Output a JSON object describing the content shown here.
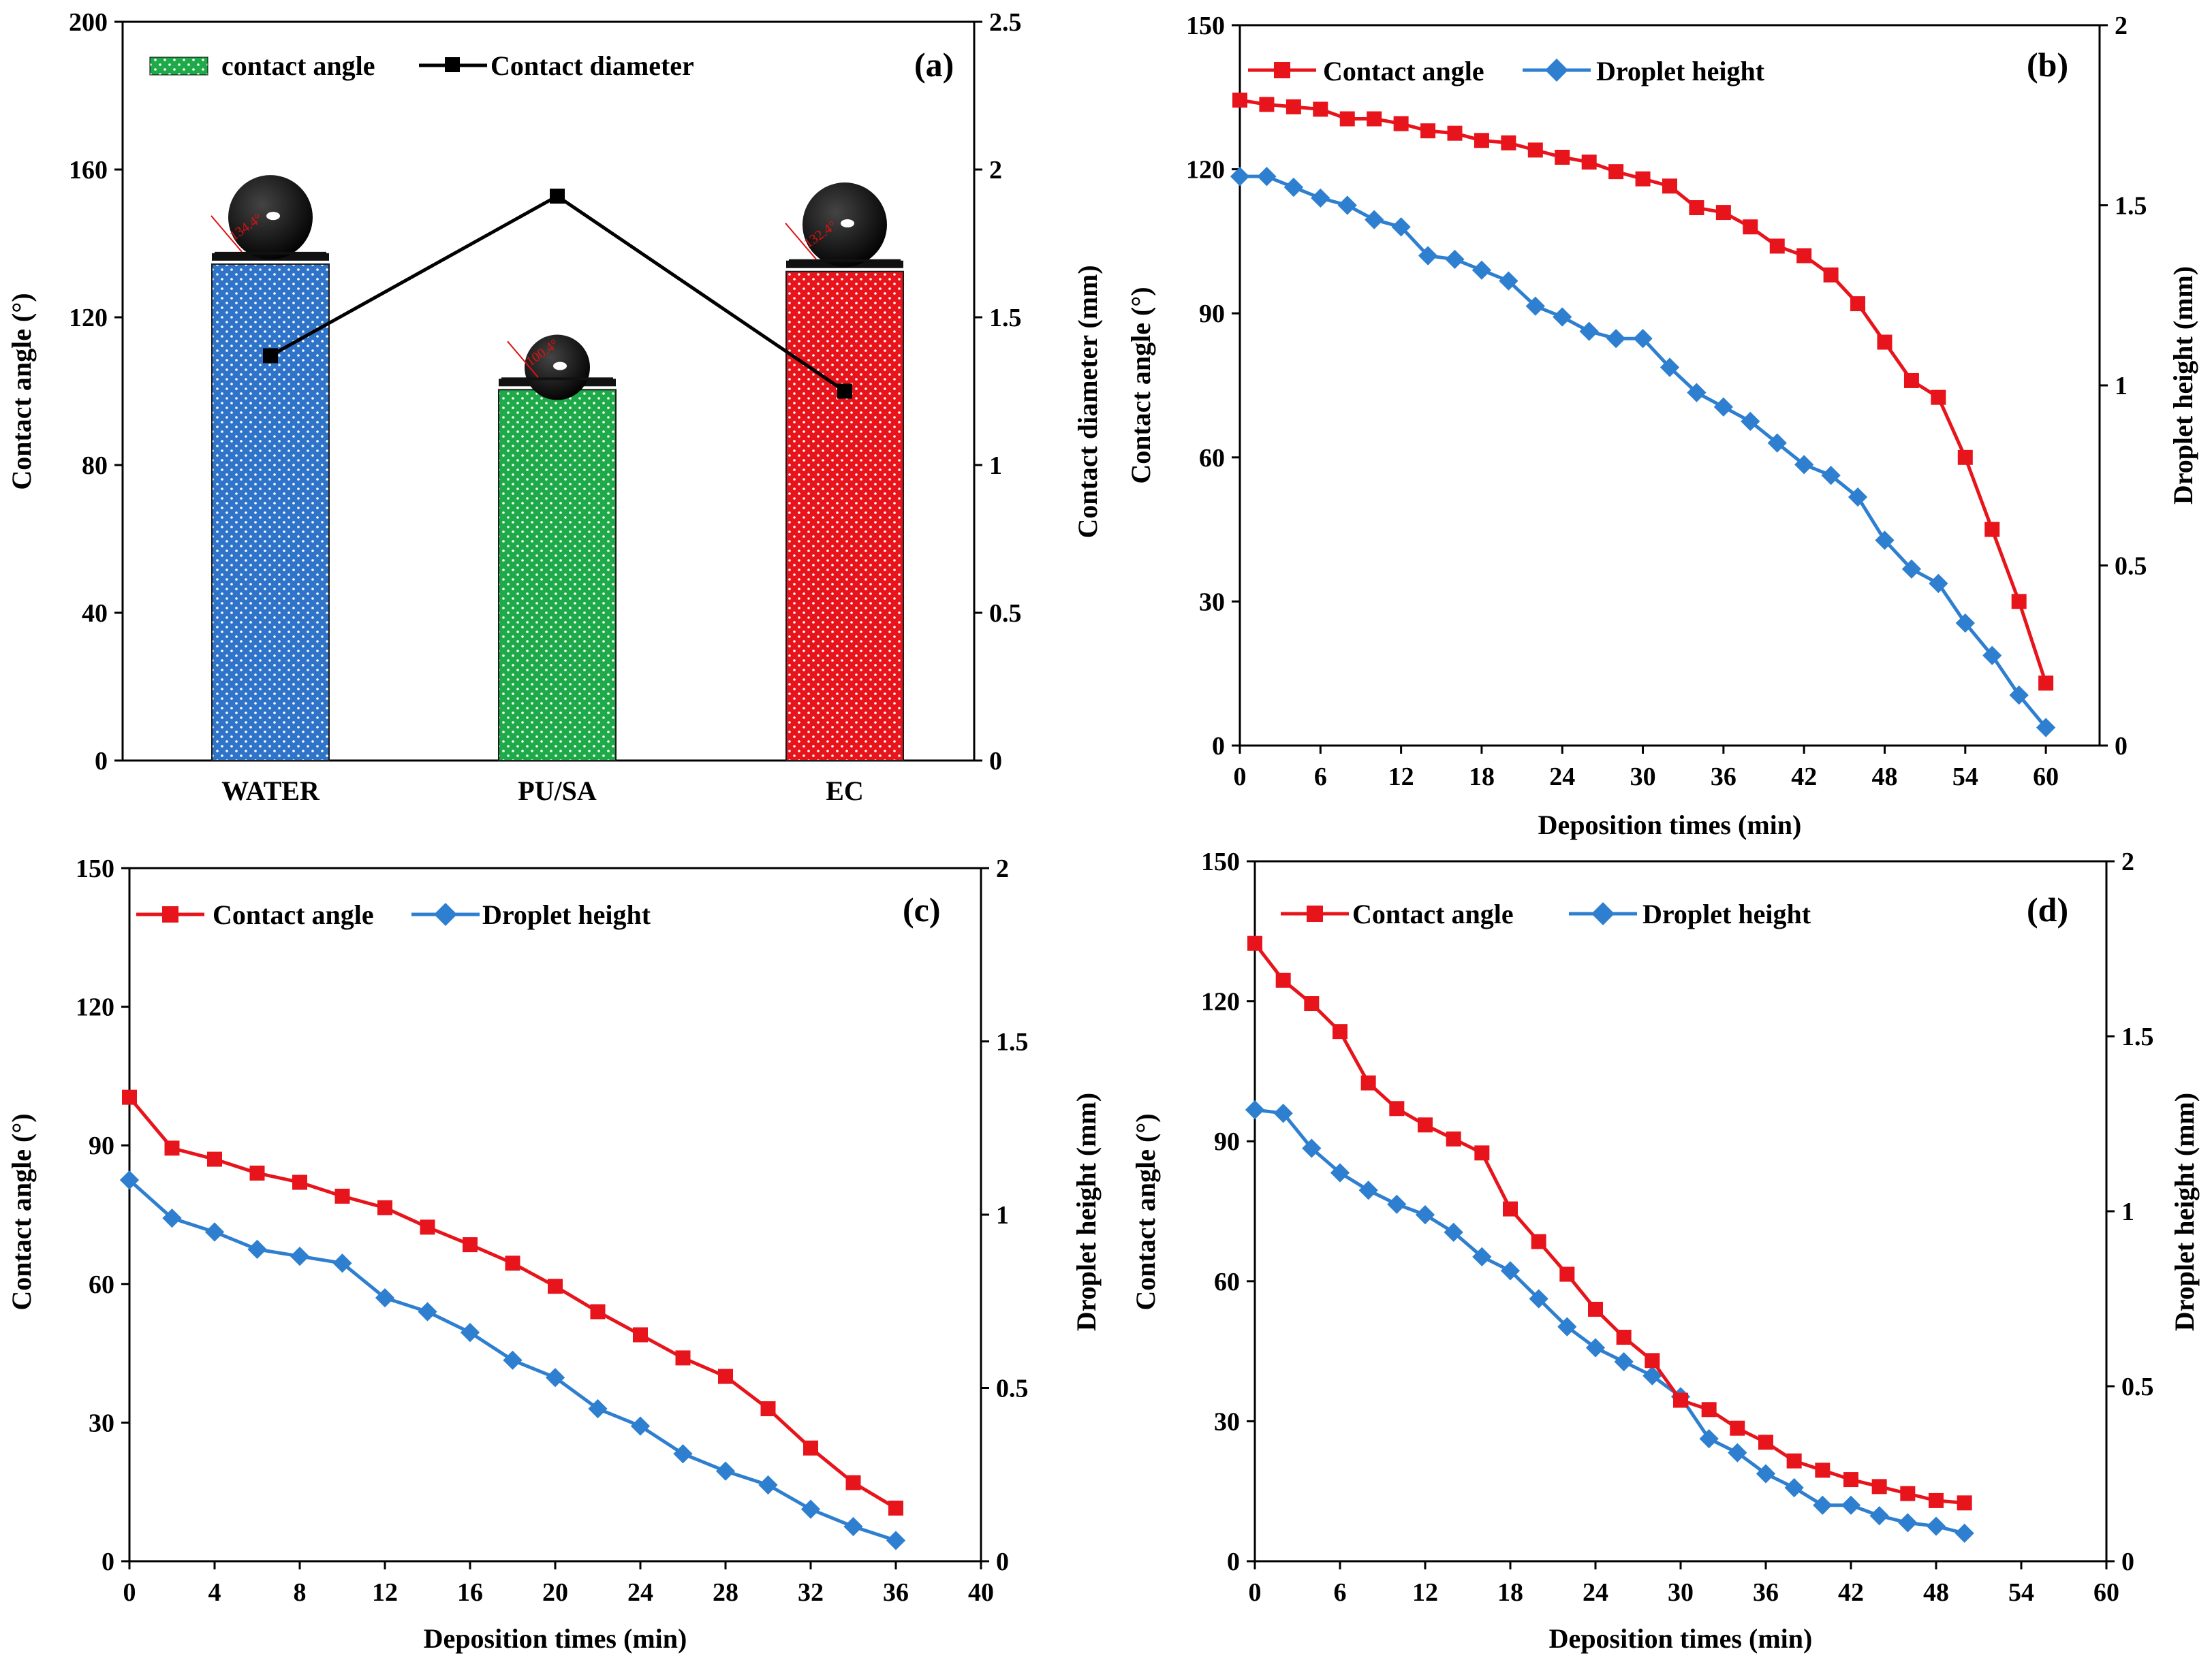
{
  "colors": {
    "red": "#e8141b",
    "blue": "#2f7fd0",
    "green": "#1fb04b",
    "bar_water": "#2f74c9",
    "bar_pusa": "#1faa4a",
    "bar_ec": "#e8141b",
    "black": "#000000"
  },
  "chart_data": [
    {
      "type": "bar",
      "panel": "(a)",
      "categories": [
        "WATER",
        "PU/SA",
        "EC"
      ],
      "series": [
        {
          "name": "contact angle",
          "axis": "left",
          "values": [
            134.4,
            100.4,
            132.4
          ]
        },
        {
          "name": "Contact diameter",
          "axis": "right",
          "render": "line",
          "values": [
            1.37,
            1.91,
            1.25
          ]
        }
      ],
      "droplet_labels": [
        "134.4°",
        "100.4°",
        "132.4°"
      ],
      "ylabel": "Contact angle (°)",
      "y2label": "Contact diameter (mm)",
      "ylim": [
        0,
        200
      ],
      "y2lim": [
        0,
        2.5
      ],
      "yticks": [
        "0",
        "40",
        "80",
        "120",
        "160",
        "200"
      ],
      "y2ticks": [
        "0",
        "0.5",
        "1",
        "1.5",
        "2",
        "2.5"
      ],
      "legend": "top-left"
    },
    {
      "type": "line",
      "panel": "(b)",
      "x": [
        0,
        2,
        4,
        6,
        8,
        10,
        12,
        14,
        16,
        18,
        20,
        22,
        24,
        26,
        28,
        30,
        32,
        34,
        36,
        38,
        40,
        42,
        44,
        46,
        48,
        50,
        52,
        54,
        56,
        58,
        60
      ],
      "series": [
        {
          "name": "Contact angle",
          "axis": "left",
          "values": [
            134.4,
            133.5,
            133,
            132.5,
            130.5,
            130.5,
            129.5,
            128,
            127.5,
            126,
            125.5,
            124,
            122.5,
            121.5,
            119.5,
            118,
            116.5,
            112,
            111,
            108,
            104,
            102,
            98,
            92,
            84,
            76,
            72.5,
            60,
            45,
            30,
            13
          ]
        },
        {
          "name": "Droplet height",
          "axis": "right",
          "values": [
            1.58,
            1.58,
            1.55,
            1.52,
            1.5,
            1.46,
            1.44,
            1.36,
            1.35,
            1.32,
            1.29,
            1.22,
            1.19,
            1.15,
            1.13,
            1.13,
            1.05,
            0.98,
            0.94,
            0.9,
            0.84,
            0.78,
            0.75,
            0.69,
            0.57,
            0.49,
            0.45,
            0.34,
            0.25,
            0.14,
            0.05
          ]
        }
      ],
      "xlabel": "Deposition times (min)",
      "ylabel": "Contact angle (°)",
      "y2label": "Droplet height  (mm)",
      "xlim": [
        0,
        64
      ],
      "ylim": [
        0,
        150
      ],
      "y2lim": [
        0,
        2
      ],
      "xticks": [
        "0",
        "6",
        "12",
        "18",
        "24",
        "30",
        "36",
        "42",
        "48",
        "54",
        "60"
      ],
      "yticks": [
        "0",
        "30",
        "60",
        "90",
        "120",
        "150"
      ],
      "y2ticks": [
        "0",
        "0.5",
        "1",
        "1.5",
        "2"
      ],
      "legend": "top-left"
    },
    {
      "type": "line",
      "panel": "(c)",
      "x": [
        0,
        2,
        4,
        6,
        8,
        10,
        12,
        14,
        16,
        18,
        20,
        22,
        24,
        26,
        28,
        30,
        32,
        34,
        36
      ],
      "series": [
        {
          "name": "Contact angle",
          "axis": "left",
          "values": [
            100.4,
            89.4,
            87,
            84,
            82,
            79,
            76.5,
            72.3,
            68.5,
            64.5,
            59.5,
            54,
            49,
            44,
            40,
            33,
            24.5,
            17,
            11.5
          ]
        },
        {
          "name": "Droplet height",
          "axis": "right",
          "values": [
            1.1,
            0.99,
            0.95,
            0.9,
            0.88,
            0.86,
            0.76,
            0.72,
            0.66,
            0.58,
            0.53,
            0.44,
            0.39,
            0.31,
            0.26,
            0.22,
            0.15,
            0.1,
            0.06
          ]
        }
      ],
      "xlabel": "Deposition times (min)",
      "ylabel": "Contact angle (°)",
      "y2label": "Droplet height  (mm)",
      "xlim": [
        0,
        40
      ],
      "ylim": [
        0,
        150
      ],
      "y2lim": [
        0,
        2
      ],
      "xticks": [
        "0",
        "4",
        "8",
        "12",
        "16",
        "20",
        "24",
        "28",
        "32",
        "36",
        "40"
      ],
      "yticks": [
        "0",
        "30",
        "60",
        "90",
        "120",
        "150"
      ],
      "y2ticks": [
        "0",
        "0.5",
        "1",
        "1.5",
        "2"
      ],
      "legend": "top-left"
    },
    {
      "type": "line",
      "panel": "(d)",
      "x": [
        0,
        2,
        4,
        6,
        8,
        10,
        12,
        14,
        16,
        18,
        20,
        22,
        24,
        26,
        28,
        30,
        32,
        34,
        36,
        38,
        40,
        42,
        44,
        46,
        48,
        50
      ],
      "series": [
        {
          "name": "Contact angle",
          "axis": "left",
          "values": [
            132.4,
            124.5,
            119.5,
            113.5,
            102.5,
            97,
            93.5,
            90.5,
            87.5,
            75.5,
            68.5,
            61.5,
            54,
            48,
            43,
            34.5,
            32.5,
            28.5,
            25.5,
            21.5,
            19.5,
            17.5,
            16,
            14.5,
            13,
            12.5
          ]
        },
        {
          "name": "Droplet height",
          "axis": "right",
          "values": [
            1.29,
            1.28,
            1.18,
            1.11,
            1.06,
            1.02,
            0.99,
            0.94,
            0.87,
            0.83,
            0.75,
            0.67,
            0.61,
            0.57,
            0.53,
            0.47,
            0.35,
            0.31,
            0.25,
            0.21,
            0.16,
            0.16,
            0.13,
            0.11,
            0.1,
            0.08
          ]
        }
      ],
      "xlabel": "Deposition times (min)",
      "ylabel": "Contact angle (°)",
      "y2label": "Droplet height  (mm)",
      "xlim": [
        0,
        60
      ],
      "ylim": [
        0,
        150
      ],
      "y2lim": [
        0,
        2
      ],
      "xticks": [
        "0",
        "6",
        "12",
        "18",
        "24",
        "30",
        "36",
        "42",
        "48",
        "54",
        "60"
      ],
      "yticks": [
        "0",
        "30",
        "60",
        "90",
        "120",
        "150"
      ],
      "y2ticks": [
        "0",
        "0.5",
        "1",
        "1.5",
        "2"
      ],
      "legend": "top-left"
    }
  ]
}
